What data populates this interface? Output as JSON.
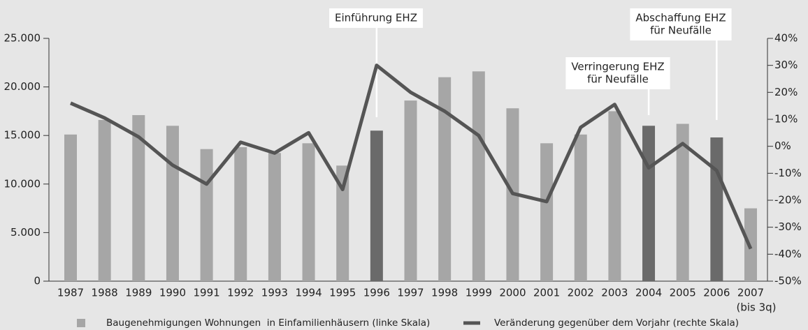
{
  "chart_data": {
    "type": "bar",
    "categories": [
      "1987",
      "1988",
      "1989",
      "1990",
      "1991",
      "1992",
      "1993",
      "1994",
      "1995",
      "1996",
      "1997",
      "1998",
      "1999",
      "2000",
      "2001",
      "2002",
      "2003",
      "2004",
      "2005",
      "2006",
      "2007"
    ],
    "x_note": {
      "category": "2007",
      "text": "(bis 3q)"
    },
    "series": [
      {
        "name": "Baugenehmigungen Wohnungen  in Einfamilienhäusern (linke Skala)",
        "type": "bar",
        "axis": "y",
        "color": "#a6a6a6",
        "colors": [
          "#a6a6a6",
          "#a6a6a6",
          "#a6a6a6",
          "#a6a6a6",
          "#a6a6a6",
          "#a6a6a6",
          "#a6a6a6",
          "#a6a6a6",
          "#a6a6a6",
          "#6a6a6a",
          "#a6a6a6",
          "#a6a6a6",
          "#a6a6a6",
          "#a6a6a6",
          "#a6a6a6",
          "#a6a6a6",
          "#a6a6a6",
          "#6a6a6a",
          "#a6a6a6",
          "#6a6a6a",
          "#a6a6a6"
        ],
        "values": [
          15100,
          16600,
          17100,
          16000,
          13600,
          13800,
          13200,
          14200,
          11900,
          15500,
          18600,
          21000,
          21600,
          17800,
          14200,
          15100,
          17500,
          16000,
          16200,
          14800,
          7500
        ]
      },
      {
        "name": "Veränderung gegenüber dem Vorjahr (rechte Skala)",
        "type": "line",
        "axis": "y2",
        "color": "#555555",
        "values": [
          16,
          10.5,
          3.5,
          -7,
          -14,
          1.5,
          -2.5,
          5,
          -16,
          30,
          20,
          13,
          4,
          -17.5,
          -20.5,
          7,
          15.5,
          -8,
          1,
          -9,
          -38
        ]
      }
    ],
    "ylim": [
      0,
      25000
    ],
    "yticks": [
      0,
      {
        "value": 5000,
        "label": "5.000"
      },
      {
        "value": 10000,
        "label": "10.000"
      },
      {
        "value": 15000,
        "label": "15.000"
      },
      {
        "value": 20000,
        "label": "20.000"
      },
      {
        "value": 25000,
        "label": "25.000"
      }
    ],
    "y2lim": [
      -50,
      40
    ],
    "y2ticks": [
      {
        "value": -50,
        "label": "-50%"
      },
      {
        "value": -40,
        "label": "-40%"
      },
      {
        "value": -30,
        "label": "-30%"
      },
      {
        "value": -20,
        "label": "-20%"
      },
      {
        "value": -10,
        "label": "-10%"
      },
      {
        "value": 0,
        "label": "0%"
      },
      {
        "value": 10,
        "label": "10%"
      },
      {
        "value": 20,
        "label": "20%"
      },
      {
        "value": 30,
        "label": "30%"
      },
      {
        "value": 40,
        "label": "40%"
      }
    ],
    "annotations": [
      {
        "category": "1996",
        "lines": [
          "Einführung EHZ"
        ]
      },
      {
        "category": "2004",
        "lines": [
          "Verringerung EHZ",
          "für Neufälle"
        ]
      },
      {
        "category": "2006",
        "lines": [
          "Abschaffung EHZ",
          "für Neufälle"
        ]
      }
    ]
  }
}
